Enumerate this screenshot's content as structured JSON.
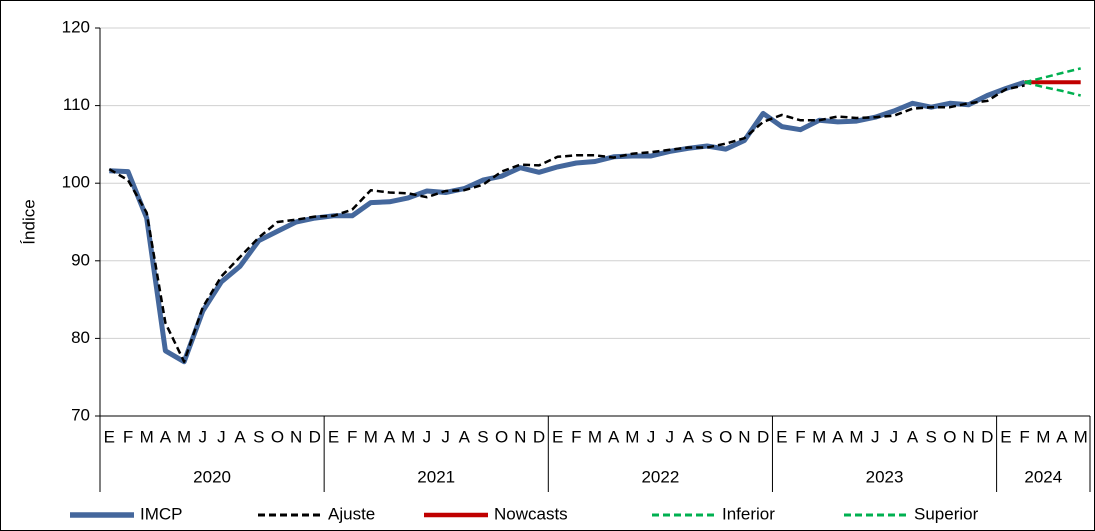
{
  "chart_data": {
    "type": "line",
    "y_label": "Índice",
    "categories": [
      "E",
      "F",
      "M",
      "A",
      "M",
      "J",
      "J",
      "A",
      "S",
      "O",
      "N",
      "D",
      "E",
      "F",
      "M",
      "A",
      "M",
      "J",
      "J",
      "A",
      "S",
      "O",
      "N",
      "D",
      "E",
      "F",
      "M",
      "A",
      "M",
      "J",
      "J",
      "A",
      "S",
      "O",
      "N",
      "D",
      "E",
      "F",
      "M",
      "A",
      "M",
      "J",
      "J",
      "A",
      "S",
      "O",
      "N",
      "D",
      "E",
      "F",
      "M",
      "A",
      "M"
    ],
    "groups": [
      {
        "label": "2020",
        "count": 12
      },
      {
        "label": "2021",
        "count": 12
      },
      {
        "label": "2022",
        "count": 12
      },
      {
        "label": "2023",
        "count": 12
      },
      {
        "label": "2024",
        "count": 5
      }
    ],
    "ylim": [
      70,
      120
    ],
    "yticks": [
      70,
      80,
      90,
      100,
      110,
      120
    ],
    "grid": true,
    "legend": "bottom",
    "series": [
      {
        "name": "IMCP",
        "color": "#44679c",
        "dashed": false,
        "values": [
          101.6,
          101.5,
          95.5,
          78.4,
          77.0,
          83.5,
          87.3,
          89.3,
          92.6,
          93.8,
          95.0,
          95.5,
          95.8,
          95.8,
          97.5,
          97.6,
          98.1,
          99.0,
          98.8,
          99.3,
          100.4,
          100.9,
          102.0,
          101.4,
          102.1,
          102.6,
          102.8,
          103.4,
          103.5,
          103.5,
          104.1,
          104.5,
          104.8,
          104.4,
          105.5,
          109.0,
          107.3,
          106.9,
          108.1,
          107.9,
          108.0,
          108.5,
          109.3,
          110.3,
          109.8,
          110.3,
          110.1,
          111.3,
          112.2,
          113.0,
          null,
          null,
          null
        ]
      },
      {
        "name": "Ajuste",
        "color": "#000000",
        "dashed": true,
        "values": [
          101.8,
          100.4,
          96.2,
          82.0,
          77.0,
          84.0,
          88.0,
          90.5,
          93.0,
          95.0,
          95.3,
          95.7,
          95.8,
          96.6,
          99.1,
          98.8,
          98.7,
          98.2,
          99.0,
          99.1,
          99.8,
          101.5,
          102.4,
          102.3,
          103.4,
          103.6,
          103.6,
          103.3,
          103.8,
          104.0,
          104.3,
          104.6,
          104.6,
          105.1,
          105.8,
          107.9,
          108.8,
          108.1,
          108.1,
          108.6,
          108.4,
          108.5,
          108.7,
          109.6,
          109.8,
          109.8,
          110.3,
          110.6,
          112.1,
          112.6,
          null,
          null,
          null
        ]
      },
      {
        "name": "Nowcasts",
        "color": "#c00000",
        "dashed": false,
        "values": [
          null,
          null,
          null,
          null,
          null,
          null,
          null,
          null,
          null,
          null,
          null,
          null,
          null,
          null,
          null,
          null,
          null,
          null,
          null,
          null,
          null,
          null,
          null,
          null,
          null,
          null,
          null,
          null,
          null,
          null,
          null,
          null,
          null,
          null,
          null,
          null,
          null,
          null,
          null,
          null,
          null,
          null,
          null,
          null,
          null,
          null,
          null,
          null,
          null,
          113.0,
          113.0,
          113.0,
          113.0
        ]
      },
      {
        "name": "Inferior",
        "color": "#00b050",
        "dashed": true,
        "values": [
          null,
          null,
          null,
          null,
          null,
          null,
          null,
          null,
          null,
          null,
          null,
          null,
          null,
          null,
          null,
          null,
          null,
          null,
          null,
          null,
          null,
          null,
          null,
          null,
          null,
          null,
          null,
          null,
          null,
          null,
          null,
          null,
          null,
          null,
          null,
          null,
          null,
          null,
          null,
          null,
          null,
          null,
          null,
          null,
          null,
          null,
          null,
          null,
          null,
          113.0,
          112.4,
          111.9,
          111.3
        ]
      },
      {
        "name": "Superior",
        "color": "#00b050",
        "dashed": true,
        "values": [
          null,
          null,
          null,
          null,
          null,
          null,
          null,
          null,
          null,
          null,
          null,
          null,
          null,
          null,
          null,
          null,
          null,
          null,
          null,
          null,
          null,
          null,
          null,
          null,
          null,
          null,
          null,
          null,
          null,
          null,
          null,
          null,
          null,
          null,
          null,
          null,
          null,
          null,
          null,
          null,
          null,
          null,
          null,
          null,
          null,
          null,
          null,
          null,
          null,
          113.0,
          113.6,
          114.2,
          114.8
        ]
      }
    ]
  }
}
